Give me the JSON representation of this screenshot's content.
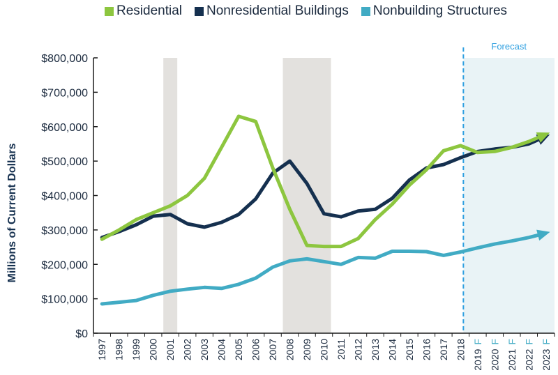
{
  "chart_data": {
    "type": "line",
    "title": "",
    "xlabel": "",
    "ylabel": "Millions of Current Dollars",
    "ylim": [
      0,
      800000
    ],
    "yticks": [
      0,
      100000,
      200000,
      300000,
      400000,
      500000,
      600000,
      700000,
      800000
    ],
    "ytick_labels": [
      "$0",
      "$100,000",
      "$200,000",
      "$300,000",
      "$400,000",
      "$500,000",
      "$600,000",
      "$700,000",
      "$800,000"
    ],
    "categories": [
      "1997",
      "1998",
      "1999",
      "2000",
      "2001",
      "2002",
      "2003",
      "2004",
      "2005",
      "2006",
      "2007",
      "2008",
      "2009",
      "2010",
      "2011",
      "2012",
      "2013",
      "2014",
      "2015",
      "2016",
      "2017",
      "2018",
      "2019",
      "2020",
      "2021",
      "2022",
      "2023"
    ],
    "category_suffix": [
      "",
      "",
      "",
      "",
      "",
      "",
      "",
      "",
      "",
      "",
      "",
      "",
      "",
      "",
      "",
      "",
      "",
      "",
      "",
      "",
      "",
      "",
      "F",
      "F",
      "F",
      "F",
      "F"
    ],
    "series": [
      {
        "name": "Residential",
        "color": "#8dc63f",
        "values": [
          273000,
          300000,
          330000,
          350000,
          370000,
          400000,
          450000,
          540000,
          630000,
          615000,
          480000,
          360000,
          255000,
          252000,
          252000,
          275000,
          330000,
          375000,
          430000,
          475000,
          530000,
          545000,
          525000,
          528000,
          540000,
          557000,
          578000
        ]
      },
      {
        "name": "Nonresidential Buildings",
        "color": "#15304f",
        "values": [
          278000,
          295000,
          315000,
          340000,
          345000,
          318000,
          308000,
          322000,
          345000,
          390000,
          465000,
          500000,
          435000,
          347000,
          338000,
          355000,
          360000,
          392000,
          445000,
          480000,
          490000,
          510000,
          528000,
          535000,
          540000,
          550000,
          572000
        ]
      },
      {
        "name": "Nonbuilding Structures",
        "color": "#41abc4",
        "values": [
          85000,
          90000,
          95000,
          110000,
          122000,
          128000,
          133000,
          130000,
          142000,
          160000,
          192000,
          210000,
          216000,
          208000,
          200000,
          220000,
          218000,
          238000,
          238000,
          237000,
          226000,
          236000,
          248000,
          259000,
          268000,
          278000,
          291000
        ]
      }
    ],
    "recession_shading": [
      {
        "start": "2001",
        "end": "2001"
      },
      {
        "start": "2008",
        "end": "2010"
      }
    ],
    "forecast": {
      "label": "Forecast",
      "start_after": "2018",
      "color": "#2e9fe0",
      "fill": "#e9f3f6"
    },
    "legend_position": "top",
    "grid": false
  }
}
